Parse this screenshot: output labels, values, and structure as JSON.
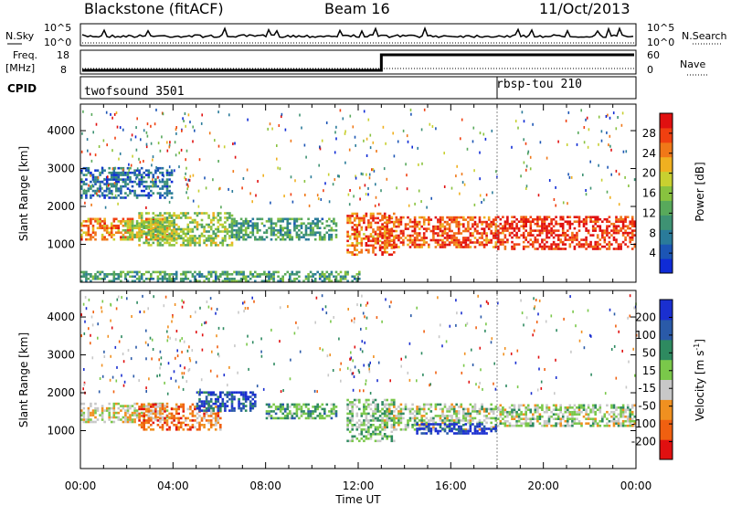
{
  "header": {
    "station": "Blackstone (fitACF)",
    "beam": "Beam 16",
    "date": "11/Oct/2013"
  },
  "top_strips": {
    "nsky_label": "N.Sky",
    "nsky_ticks": [
      "10^5",
      "10^0"
    ],
    "nsearch_label": "N.Search",
    "nsearch_ticks": [
      "10^5",
      "10^0"
    ],
    "freq_label_1": "Freq.",
    "freq_label_2": "[MHz]",
    "freq_ticks": [
      "18",
      "8"
    ],
    "nave_label": "Nave",
    "nave_ticks": [
      "60",
      "0"
    ],
    "cpid_label": "CPID",
    "cpid_segments": [
      {
        "name": "twofsound 3501",
        "start_hour": 0,
        "end_hour": 18
      },
      {
        "name": "rbsp-tou 210",
        "start_hour": 18,
        "end_hour": 24
      }
    ],
    "freq_step": {
      "before_hour": 13,
      "low_mhz": 8,
      "high_mhz": 18
    }
  },
  "chart_data": [
    {
      "type": "heatmap",
      "title": "",
      "xlabel": "Time UT",
      "ylabel": "Slant Range [km]",
      "x_ticks": [
        "00:00",
        "04:00",
        "08:00",
        "12:00",
        "16:00",
        "20:00",
        "00:00"
      ],
      "xlim_hours": [
        0,
        24
      ],
      "y_ticks": [
        "1000",
        "2000",
        "3000",
        "4000"
      ],
      "ylim_km": [
        0,
        4700
      ],
      "colorbar": {
        "label": "Power [dB]",
        "ticks": [
          "4",
          "8",
          "12",
          "16",
          "20",
          "24",
          "28"
        ],
        "range": [
          0,
          30
        ],
        "colors": [
          "#0f2bd6",
          "#1c55b5",
          "#2a7b9a",
          "#3e9273",
          "#58a95b",
          "#88c23f",
          "#c8d030",
          "#f0b020",
          "#f07818",
          "#f04010",
          "#e01010"
        ]
      },
      "bands": [
        {
          "start_hour": 0.0,
          "end_hour": 4.0,
          "ranges_km": [
            [
              1100,
              1700
            ]
          ],
          "level": 0.75
        },
        {
          "start_hour": 1.8,
          "end_hour": 4.2,
          "ranges_km": [
            [
              1100,
              1600
            ]
          ],
          "level": 0.55
        },
        {
          "start_hour": 2.5,
          "end_hour": 6.5,
          "ranges_km": [
            [
              950,
              1800
            ]
          ],
          "level": 0.5
        },
        {
          "start_hour": 6.5,
          "end_hour": 11.0,
          "ranges_km": [
            [
              1100,
              1700
            ]
          ],
          "level": 0.35
        },
        {
          "start_hour": 11.5,
          "end_hour": 13.5,
          "ranges_km": [
            [
              700,
              1800
            ]
          ],
          "level": 0.8
        },
        {
          "start_hour": 13.0,
          "end_hour": 18.0,
          "ranges_km": [
            [
              900,
              1700
            ]
          ],
          "level": 0.85
        },
        {
          "start_hour": 18.0,
          "end_hour": 24.0,
          "ranges_km": [
            [
              850,
              1750
            ]
          ],
          "level": 0.9
        },
        {
          "start_hour": 0.0,
          "end_hour": 4.0,
          "ranges_km": [
            [
              2200,
              3000
            ]
          ],
          "level": 0.2
        },
        {
          "start_hour": 0.0,
          "end_hour": 12.0,
          "ranges_km": [
            [
              0,
              250
            ]
          ],
          "level": 0.35
        }
      ]
    },
    {
      "type": "heatmap",
      "title": "",
      "xlabel": "Time UT",
      "ylabel": "Slant Range [km]",
      "x_ticks": [
        "00:00",
        "04:00",
        "08:00",
        "12:00",
        "16:00",
        "20:00",
        "00:00"
      ],
      "xlim_hours": [
        0,
        24
      ],
      "y_ticks": [
        "1000",
        "2000",
        "3000",
        "4000"
      ],
      "ylim_km": [
        0,
        4700
      ],
      "colorbar": {
        "label": "Velocity [m s^-1]",
        "label_main": "Velocity [m s",
        "label_sup": "-1",
        "label_end": "]",
        "ticks": [
          "200",
          "100",
          "50",
          "15",
          "-15",
          "-50",
          "-100",
          "-200"
        ],
        "range": [
          -250,
          250
        ],
        "colors": [
          "#1a2fd0",
          "#2a5aa8",
          "#2e8a60",
          "#7ac84a",
          "#c8c8c8",
          "#f09020",
          "#f06010",
          "#e01010"
        ]
      },
      "bands": [
        {
          "start_hour": 0.0,
          "end_hour": 4.0,
          "ranges_km": [
            [
              1200,
              1700
            ]
          ],
          "level": 0.45
        },
        {
          "start_hour": 2.5,
          "end_hour": 6.0,
          "ranges_km": [
            [
              1000,
              1700
            ]
          ],
          "level": 0.25
        },
        {
          "start_hour": 5.0,
          "end_hour": 7.5,
          "ranges_km": [
            [
              1500,
              2000
            ]
          ],
          "level": 0.85
        },
        {
          "start_hour": 8.0,
          "end_hour": 11.0,
          "ranges_km": [
            [
              1300,
              1700
            ]
          ],
          "level": 0.65
        },
        {
          "start_hour": 11.5,
          "end_hour": 13.5,
          "ranges_km": [
            [
              700,
              1800
            ]
          ],
          "level": 0.55
        },
        {
          "start_hour": 13.0,
          "end_hour": 18.0,
          "ranges_km": [
            [
              1000,
              1700
            ]
          ],
          "level": 0.5
        },
        {
          "start_hour": 14.5,
          "end_hour": 18.0,
          "ranges_km": [
            [
              900,
              1200
            ]
          ],
          "level": 0.95
        },
        {
          "start_hour": 18.0,
          "end_hour": 24.0,
          "ranges_km": [
            [
              1100,
              1700
            ]
          ],
          "level": 0.5
        }
      ]
    }
  ]
}
